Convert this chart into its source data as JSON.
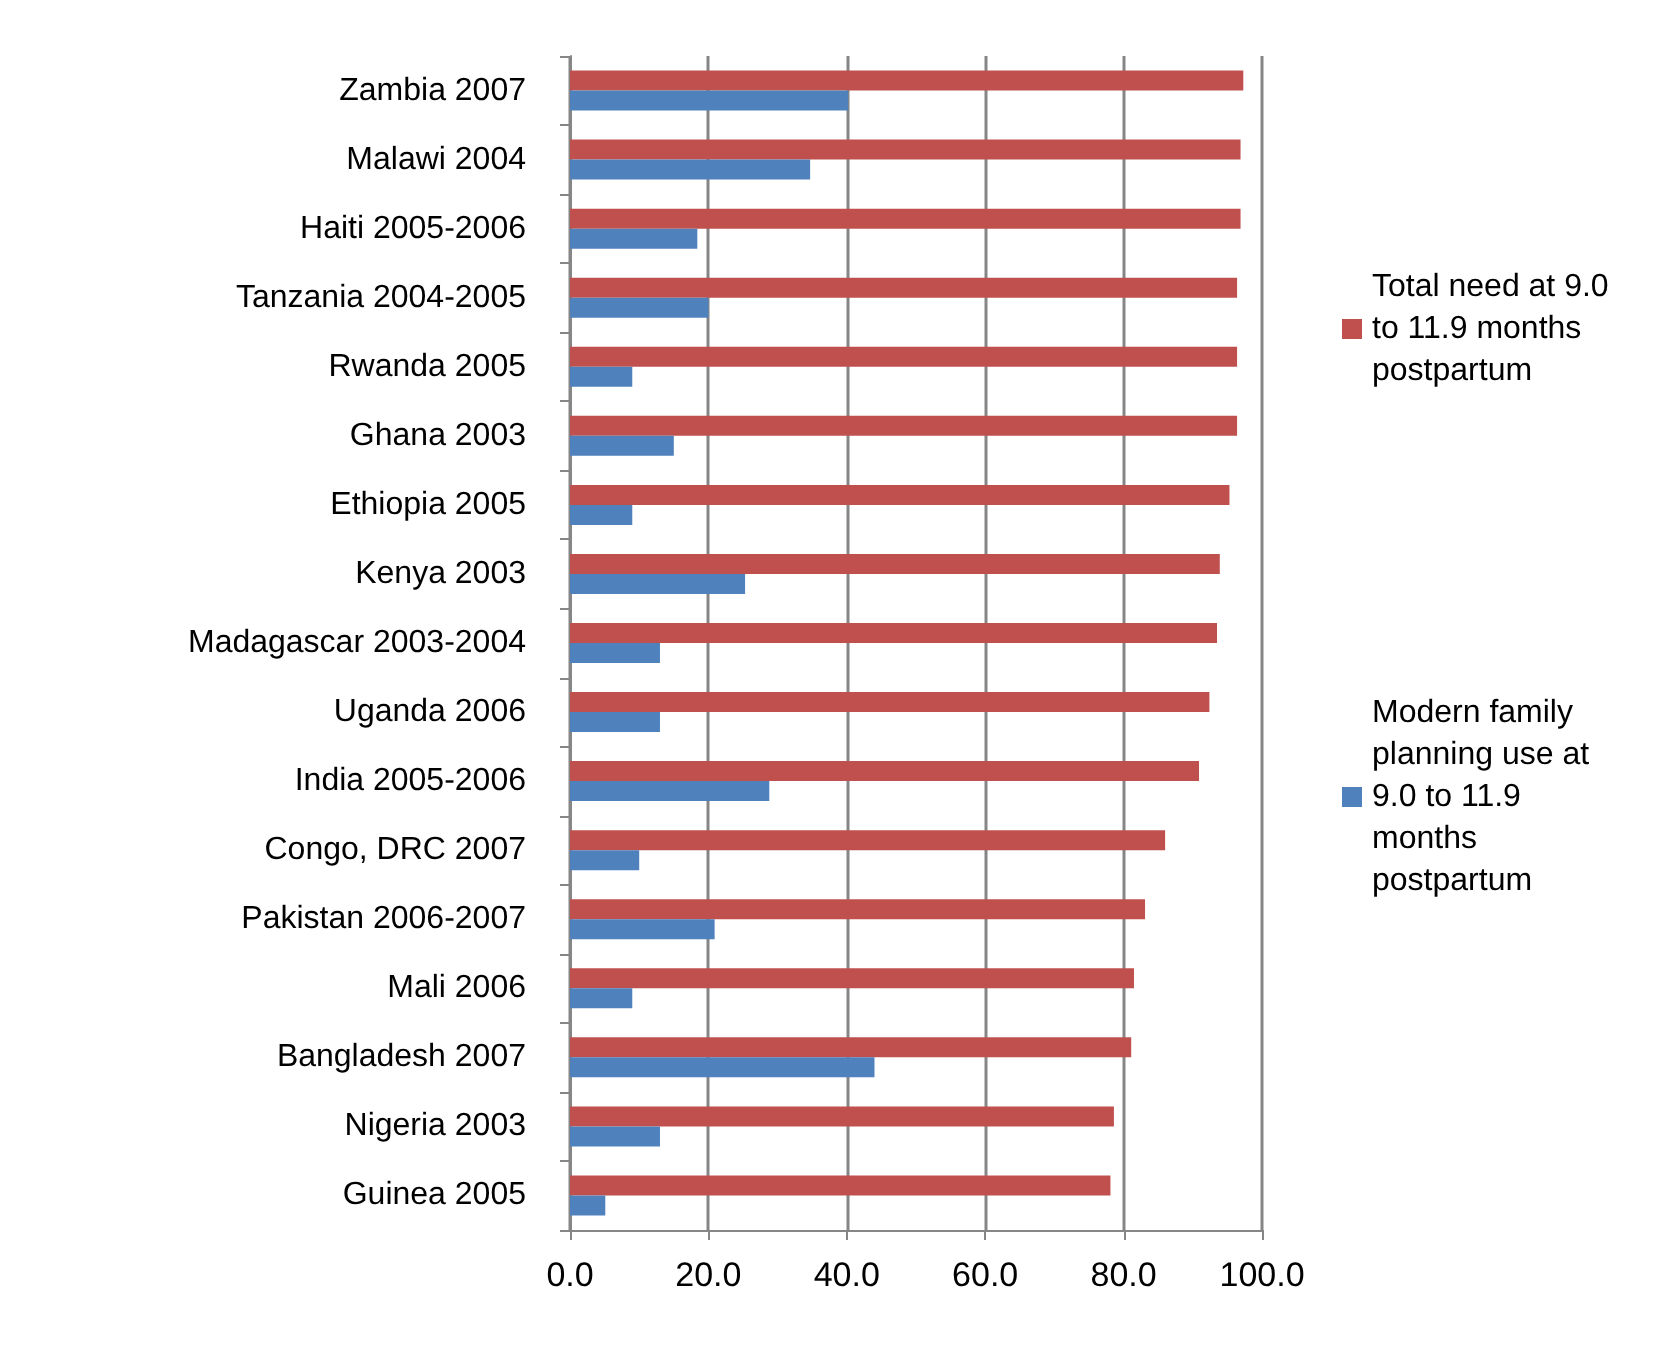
{
  "chart_data": {
    "type": "bar",
    "orientation": "horizontal",
    "categories": [
      "Zambia 2007",
      "Malawi 2004",
      "Haiti 2005-2006",
      "Tanzania 2004-2005",
      "Rwanda 2005",
      "Ghana 2003",
      "Ethiopia 2005",
      "Kenya 2003",
      "Madagascar 2003-2004",
      "Uganda 2006",
      "India 2005-2006",
      "Congo, DRC 2007",
      "Pakistan 2006-2007",
      "Mali 2006",
      "Bangladesh 2007",
      "Nigeria 2003",
      "Guinea 2005"
    ],
    "series": [
      {
        "name": "Total need at 9.0 to 11.9 months postpartum",
        "color": "#c0504d",
        "values": [
          97.3,
          96.9,
          96.9,
          96.4,
          96.4,
          96.4,
          95.3,
          93.9,
          93.5,
          92.4,
          90.9,
          86.0,
          83.1,
          81.5,
          81.1,
          78.6,
          78.1
        ]
      },
      {
        "name": "Modern family planning use at 9.0 to 11.9 months postpartum",
        "color": "#4f81bd",
        "values": [
          40.2,
          34.7,
          18.4,
          20.0,
          9.0,
          15.0,
          9.0,
          25.3,
          13.0,
          13.0,
          28.8,
          10.0,
          20.9,
          9.0,
          44.0,
          13.0,
          5.1
        ]
      }
    ],
    "xlim": [
      0,
      100
    ],
    "xticks": [
      {
        "value": 0,
        "label": "0.0"
      },
      {
        "value": 20,
        "label": "20.0"
      },
      {
        "value": 40,
        "label": "40.0"
      },
      {
        "value": 60,
        "label": "60.0"
      },
      {
        "value": 80,
        "label": "80.0"
      },
      {
        "value": 100,
        "label": "100.0"
      }
    ],
    "grid": "x",
    "legend": "right"
  }
}
